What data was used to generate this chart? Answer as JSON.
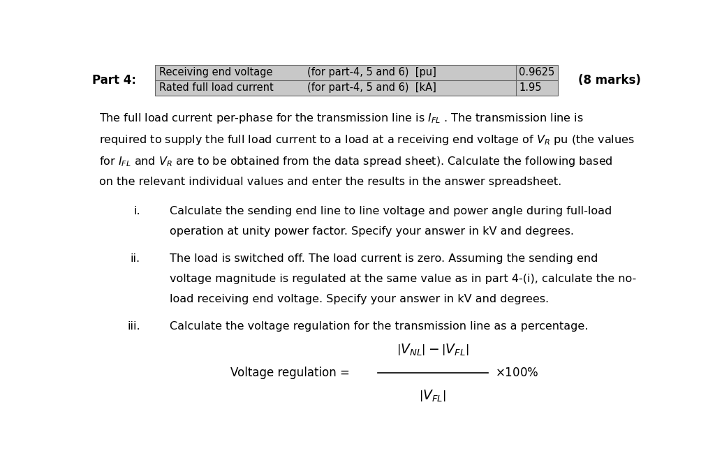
{
  "bg_color": "#ffffff",
  "text_color": "#000000",
  "table_bg": "#c8c8c8",
  "part4_label": "Part 4:",
  "marks_label": "(8 marks)",
  "table_rows": [
    {
      "label": "Receiving end voltage",
      "note": "(for part-4, 5 and 6)  [pu]",
      "value": "0.9625"
    },
    {
      "label": "Rated full load current",
      "note": "(for part-4, 5 and 6)  [kA]",
      "value": "1.95"
    }
  ],
  "figsize": [
    10.24,
    6.56
  ],
  "dpi": 100,
  "fs": 11.5,
  "fs_small": 10.5
}
